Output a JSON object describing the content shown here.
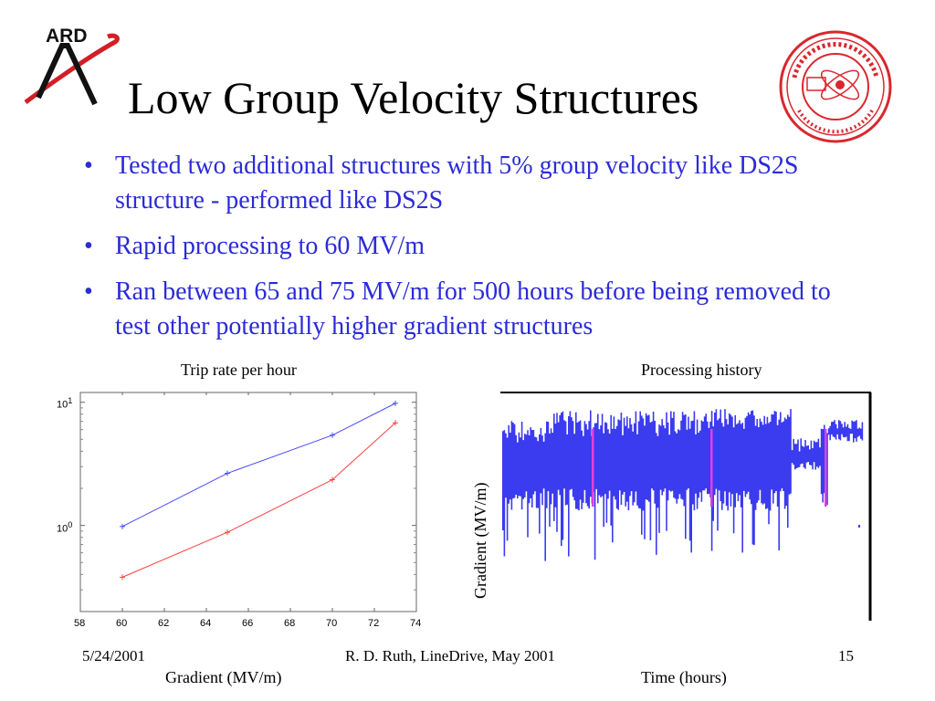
{
  "logos": {
    "ard_text": "ARD",
    "seal_text": "STANFORD LINEAR ACCELERATOR CENTER · ESTABLISHED 1962 · D.O.E.",
    "colors": {
      "ard_red": "#d21f26",
      "seal_red": "#d9272e"
    }
  },
  "slide": {
    "title": "Low Group Velocity Structures",
    "bullet_color": "#2b2bd8",
    "bullets": [
      "Tested two additional structures with 5% group velocity like DS2S structure - performed like DS2S",
      "Rapid processing to 60 MV/m",
      "Ran between 65 and 75 MV/m for 500 hours before being removed to test other potentially higher gradient structures"
    ]
  },
  "chart_left": {
    "caption": "Trip rate per hour",
    "xlabel": "Gradient (MV/m)",
    "x_ticks": [
      "58",
      "60",
      "62",
      "64",
      "66",
      "68",
      "70",
      "72",
      "74"
    ],
    "y_ticks": [
      {
        "base": "10",
        "exp": "1"
      },
      {
        "base": "10",
        "exp": "0"
      }
    ]
  },
  "chart_right": {
    "caption": "Processing history",
    "ylabel": "Gradient (MV/m)",
    "xlabel": "Time (hours)"
  },
  "footer": {
    "date": "5/24/2001",
    "center": "R. D. Ruth, LineDrive, May 2001",
    "page": "15"
  },
  "chart_data": [
    {
      "type": "line",
      "title": "Trip rate per hour",
      "xlabel": "Gradient (MV/m)",
      "ylabel": "",
      "xlim": [
        58,
        74
      ],
      "ylim": [
        0.2,
        12
      ],
      "yscale": "log",
      "grid": false,
      "series": [
        {
          "color": "#4a4aff",
          "x": [
            60,
            65,
            70,
            73
          ],
          "values": [
            0.98,
            2.65,
            5.4,
            9.8
          ]
        },
        {
          "color": "#ff4040",
          "x": [
            60,
            65,
            70,
            73
          ],
          "values": [
            0.38,
            0.88,
            2.35,
            6.8
          ]
        }
      ]
    },
    {
      "type": "area",
      "title": "Processing history",
      "xlabel": "Time (hours)",
      "ylabel": "Gradient (MV/m)",
      "grid": false,
      "fill_color": "#3b3bf0",
      "highlight_color": "#e040e0"
    }
  ]
}
